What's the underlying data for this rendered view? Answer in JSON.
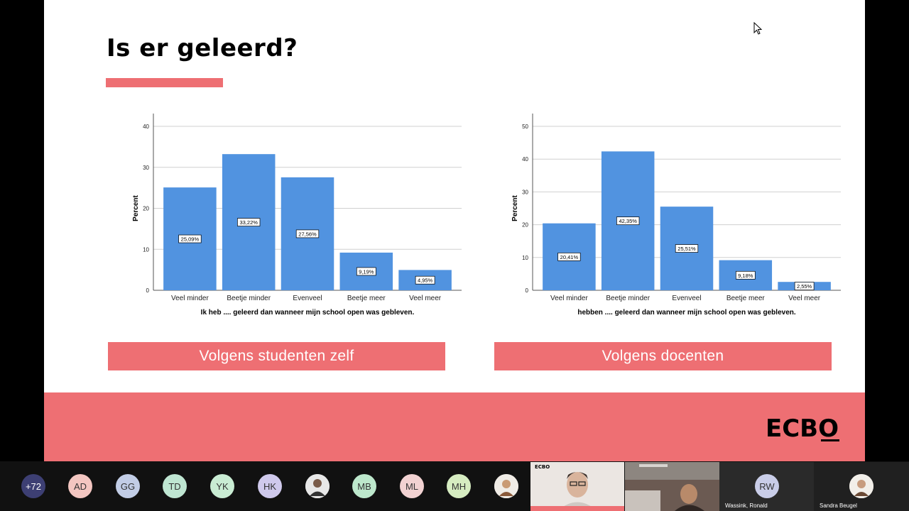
{
  "slide": {
    "title": "Is er geleerd?",
    "accent_color": "#ee6f73",
    "footer_logo": "ECBO",
    "captions": [
      "Volgens studenten zelf",
      "Volgens docenten"
    ]
  },
  "chart_data": [
    {
      "type": "bar",
      "categories": [
        "Veel minder",
        "Beetje minder",
        "Evenveel",
        "Beetje meer",
        "Veel meer"
      ],
      "values": [
        25.09,
        33.22,
        27.56,
        9.19,
        4.95
      ],
      "data_labels": [
        "25,09%",
        "33,22%",
        "27,56%",
        "9,19%",
        "4,95%"
      ],
      "ylabel": "Percent",
      "xlabel": "Ik heb .... geleerd dan wanneer mijn school open was gebleven.",
      "ylim": [
        0,
        40
      ],
      "yticks": [
        0,
        10,
        20,
        30,
        40
      ],
      "grid": true,
      "bar_color": "#5193e0"
    },
    {
      "type": "bar",
      "categories": [
        "Veel minder",
        "Beetje minder",
        "Evenveel",
        "Beetje meer",
        "Veel meer"
      ],
      "values": [
        20.41,
        42.35,
        25.51,
        9.18,
        2.55
      ],
      "data_labels": [
        "20,41%",
        "42,35%",
        "25,51%",
        "9,18%",
        "2,55%"
      ],
      "ylabel": "Percent",
      "xlabel": "hebben .... geleerd dan wanneer mijn school open was gebleven.",
      "ylim": [
        0,
        50
      ],
      "yticks": [
        0,
        10,
        20,
        30,
        40,
        50
      ],
      "grid": true,
      "bar_color": "#5193e0"
    }
  ],
  "participants": {
    "overflow_count": "+72",
    "avatars": [
      {
        "initials": "AD",
        "color": "#f3c6c1"
      },
      {
        "initials": "GG",
        "color": "#c2cde6"
      },
      {
        "initials": "TD",
        "color": "#bfe6d2"
      },
      {
        "initials": "YK",
        "color": "#c9ecd3"
      },
      {
        "initials": "HK",
        "color": "#cfc9ec"
      },
      {
        "initials": "MB",
        "color": "#bde8cc"
      },
      {
        "initials": "ML",
        "color": "#f2d2d2"
      },
      {
        "initials": "MH",
        "color": "#d6ecc1"
      }
    ],
    "tiles": [
      {
        "initials": "RW",
        "name": "Wassink, Ronald"
      },
      {
        "name": "Sandra Beugel"
      }
    ],
    "video_logo": "ECBO"
  }
}
